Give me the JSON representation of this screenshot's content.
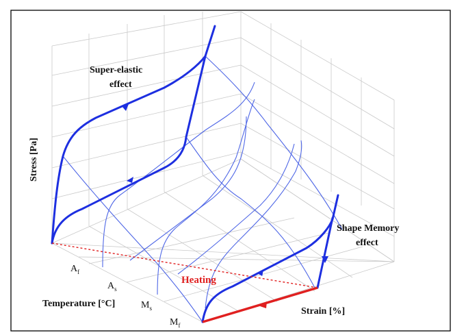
{
  "labels": {
    "stress_axis": "Stress [Pa]",
    "temperature_axis": "Temperature [°C]",
    "strain_axis": "Strain [%]",
    "super_elastic_line1": "Super-elastic",
    "super_elastic_line2": "effect",
    "shape_memory_line1": "Shape Memory",
    "shape_memory_line2": "effect",
    "heating": "Heating"
  },
  "temperature_ticks": [
    {
      "base": "A",
      "sub": "f"
    },
    {
      "base": "A",
      "sub": "s"
    },
    {
      "base": "M",
      "sub": "s"
    },
    {
      "base": "M",
      "sub": "f"
    }
  ],
  "colors": {
    "curve": "#1d2fe0",
    "thin_curve": "#4f67e6",
    "heating": "#e02020",
    "grid": "#c9c9c9",
    "frame": "#000000"
  }
}
